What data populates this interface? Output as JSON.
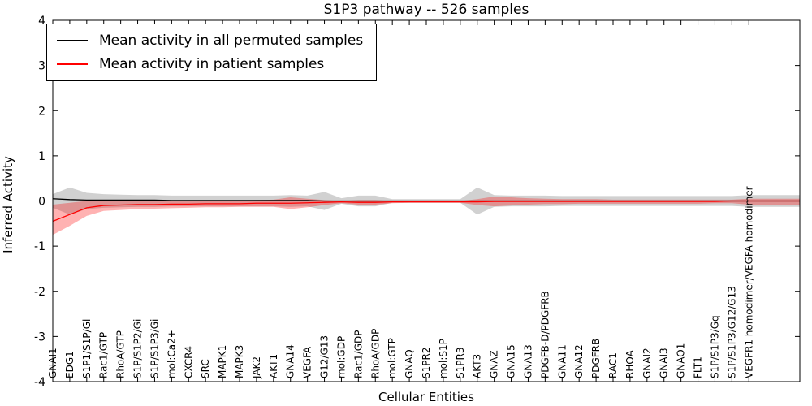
{
  "chart_data": {
    "type": "line",
    "title": "S1P3 pathway -- 526 samples",
    "xlabel": "Cellular Entities",
    "ylabel": "Inferred Activity",
    "ylim": [
      -4,
      4
    ],
    "yticks": [
      -4,
      -3,
      -2,
      -1,
      0,
      1,
      2,
      3,
      4
    ],
    "grid": false,
    "legend_position": "upper left",
    "zero_line": "dashed",
    "categories": [
      "GNAI1",
      "EDG1",
      "S1P1/S1P/Gi",
      "Rac1/GTP",
      "RhoA/GTP",
      "S1P/S1P2/Gi",
      "S1P/S1P3/Gi",
      "mol:Ca2+",
      "CXCR4",
      "SRC",
      "MAPK1",
      "MAPK3",
      "JAK2",
      "AKT1",
      "GNA14",
      "VEGFA",
      "G12/G13",
      "mol:GDP",
      "Rac1/GDP",
      "RhoA/GDP",
      "mol:GTP",
      "GNAQ",
      "S1PR2",
      "mol:S1P",
      "S1PR3",
      "AKT3",
      "GNAZ",
      "GNA15",
      "GNA13",
      "PDGFB-D/PDGFRB",
      "GNA11",
      "GNA12",
      "PDGFRB",
      "RAC1",
      "RHOA",
      "GNAI2",
      "GNAI3",
      "GNAO1",
      "FLT1",
      "S1P/S1P3/Gq",
      "S1P/S1P3/G12/G13",
      "VEGFR1 homodimer/VEGFA homodimer"
    ],
    "series": [
      {
        "name": "Mean activity in all permuted samples",
        "color": "#000000",
        "band_color": "#999999",
        "band_opacity": 0.45,
        "values": [
          0.05,
          0.03,
          0.02,
          0.02,
          0.02,
          0.02,
          0.02,
          0.01,
          0.01,
          0.01,
          0.01,
          0.01,
          0.01,
          0.01,
          0.01,
          0.01,
          0.0,
          0.0,
          0.0,
          0.0,
          0.0,
          0.0,
          0.0,
          0.0,
          0.0,
          0.0,
          0.0,
          0.0,
          0.0,
          0.0,
          0.0,
          0.0,
          0.0,
          0.0,
          0.0,
          0.0,
          0.0,
          0.0,
          0.0,
          0.0,
          0.0,
          0.0
        ],
        "band_upper": [
          0.15,
          0.3,
          0.18,
          0.15,
          0.14,
          0.13,
          0.13,
          0.12,
          0.12,
          0.12,
          0.12,
          0.12,
          0.12,
          0.12,
          0.13,
          0.12,
          0.2,
          0.06,
          0.12,
          0.12,
          0.04,
          0.04,
          0.04,
          0.04,
          0.04,
          0.3,
          0.13,
          0.12,
          0.12,
          0.12,
          0.11,
          0.11,
          0.11,
          0.11,
          0.11,
          0.11,
          0.11,
          0.11,
          0.11,
          0.11,
          0.11,
          0.13
        ],
        "band_lower": [
          -0.15,
          -0.3,
          -0.18,
          -0.15,
          -0.14,
          -0.13,
          -0.13,
          -0.12,
          -0.12,
          -0.12,
          -0.12,
          -0.12,
          -0.12,
          -0.12,
          -0.13,
          -0.12,
          -0.2,
          -0.06,
          -0.12,
          -0.12,
          -0.04,
          -0.04,
          -0.04,
          -0.04,
          -0.04,
          -0.3,
          -0.13,
          -0.12,
          -0.12,
          -0.12,
          -0.11,
          -0.11,
          -0.11,
          -0.11,
          -0.11,
          -0.11,
          -0.11,
          -0.11,
          -0.11,
          -0.11,
          -0.11,
          -0.13
        ]
      },
      {
        "name": "Mean activity in patient samples",
        "color": "#ff0000",
        "band_color": "#ff0000",
        "band_opacity": 0.3,
        "values": [
          -0.45,
          -0.3,
          -0.15,
          -0.1,
          -0.09,
          -0.08,
          -0.08,
          -0.07,
          -0.07,
          -0.06,
          -0.06,
          -0.06,
          -0.05,
          -0.05,
          -0.05,
          -0.04,
          -0.03,
          -0.02,
          -0.03,
          -0.03,
          -0.02,
          -0.02,
          -0.02,
          -0.02,
          -0.02,
          -0.02,
          -0.01,
          -0.01,
          -0.01,
          -0.01,
          -0.01,
          -0.01,
          -0.01,
          -0.01,
          -0.01,
          -0.01,
          -0.01,
          -0.01,
          -0.01,
          -0.01,
          0.0,
          0.0
        ],
        "band_upper": [
          -0.08,
          -0.04,
          0.0,
          0.01,
          0.01,
          0.01,
          0.01,
          0.01,
          0.01,
          0.01,
          0.01,
          0.01,
          0.02,
          0.03,
          0.08,
          0.05,
          0.02,
          0.0,
          0.02,
          0.02,
          0.0,
          0.0,
          0.0,
          0.0,
          0.0,
          0.04,
          0.1,
          0.08,
          0.06,
          0.05,
          0.04,
          0.04,
          0.04,
          0.03,
          0.03,
          0.03,
          0.03,
          0.03,
          0.03,
          0.03,
          0.03,
          0.05
        ],
        "band_lower": [
          -0.75,
          -0.55,
          -0.33,
          -0.22,
          -0.2,
          -0.18,
          -0.17,
          -0.16,
          -0.15,
          -0.14,
          -0.14,
          -0.13,
          -0.13,
          -0.13,
          -0.18,
          -0.14,
          -0.09,
          -0.05,
          -0.08,
          -0.08,
          -0.05,
          -0.04,
          -0.04,
          -0.04,
          -0.04,
          -0.09,
          -0.12,
          -0.1,
          -0.08,
          -0.07,
          -0.07,
          -0.06,
          -0.06,
          -0.06,
          -0.06,
          -0.06,
          -0.06,
          -0.06,
          -0.06,
          -0.05,
          -0.05,
          -0.08
        ]
      }
    ]
  }
}
